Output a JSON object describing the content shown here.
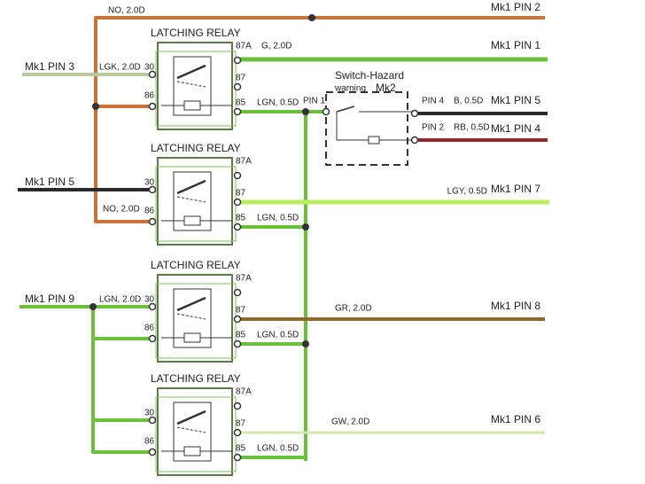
{
  "top_connector": {
    "wire": "NO, 2.0D",
    "pin": "Mk1 PIN 2"
  },
  "relays": [
    {
      "title": "LATCHING RELAY",
      "t87a": "87A",
      "t87": "87",
      "t30": "30",
      "t86": "86",
      "t85": "85",
      "in_pin": "Mk1 PIN 3",
      "in_wire": "LGK, 2.0D",
      "out_wire": "G, 2.0D",
      "out_pin": "Mk1 PIN 1",
      "coil_wire": "LGN, 0.5D"
    },
    {
      "title": "LATCHING RELAY",
      "t87a": "87A",
      "t87": "87",
      "t30": "30",
      "t86": "86",
      "t85": "85",
      "in_pin": "Mk1 PIN 5",
      "return_wire": "NO, 2.0D",
      "out_wire": "LGY, 0.5D",
      "out_pin": "Mk1 PIN 7",
      "coil_wire": "LGN, 0.5D"
    },
    {
      "title": "LATCHING RELAY",
      "t87a": "87A",
      "t87": "87",
      "t30": "30",
      "t86": "86",
      "t85": "85",
      "in_pin": "Mk1 PIN 9",
      "in_wire": "LGN, 2.0D",
      "out_wire": "GR, 2.0D",
      "out_pin": "Mk1 PIN 8",
      "coil_wire": "LGN, 0.5D"
    },
    {
      "title": "LATCHING RELAY",
      "t87a": "87A",
      "t87": "87",
      "t30": "30",
      "t86": "86",
      "t85": "85",
      "out_wire": "GW, 2.0D",
      "out_pin": "Mk1 PIN 6",
      "coil_wire": "LGN, 0.5D"
    }
  ],
  "switch": {
    "title": "Switch-Hazard",
    "subtitle": "warning",
    "id": "Mk2",
    "in_pin": "PIN 1",
    "pin4": "PIN 4",
    "wire4": "B, 0.5D",
    "mk4": "Mk1 PIN 5",
    "pin2": "PIN 2",
    "wire2": "RB, 0.5D",
    "mk2": "Mk1 PIN 4"
  }
}
